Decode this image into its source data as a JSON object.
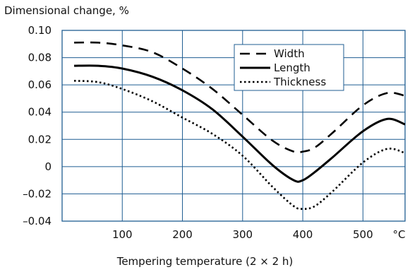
{
  "chart_data": {
    "type": "line",
    "ylabel": "Dimensional change, %",
    "xlabel": "Tempering temperature  (2 × 2 h)",
    "xlim": [
      0,
      570
    ],
    "ylim": [
      -0.04,
      0.1
    ],
    "grid": true,
    "legend_position": "top-right",
    "x_ticks": [
      {
        "value": 100,
        "label": "100"
      },
      {
        "value": 200,
        "label": "200"
      },
      {
        "value": 300,
        "label": "300"
      },
      {
        "value": 400,
        "label": "400"
      },
      {
        "value": 500,
        "label": "500"
      },
      {
        "value": 560,
        "label": "°C"
      }
    ],
    "y_ticks": [
      {
        "value": 0.1,
        "label": "0.10"
      },
      {
        "value": 0.08,
        "label": "0.08"
      },
      {
        "value": 0.06,
        "label": "0.06"
      },
      {
        "value": 0.04,
        "label": "0.04"
      },
      {
        "value": 0.02,
        "label": "0.02"
      },
      {
        "value": 0.0,
        "label": "0"
      },
      {
        "value": -0.02,
        "label": "–0.02"
      },
      {
        "value": -0.04,
        "label": "–0.04"
      }
    ],
    "series": [
      {
        "name": "Width",
        "style": "dashed",
        "color": "#000000",
        "x": [
          20,
          60,
          100,
          150,
          200,
          250,
          300,
          350,
          385,
          400,
          420,
          450,
          500,
          540,
          570
        ],
        "y": [
          0.091,
          0.091,
          0.089,
          0.084,
          0.072,
          0.057,
          0.038,
          0.019,
          0.011,
          0.011,
          0.014,
          0.025,
          0.045,
          0.054,
          0.052
        ]
      },
      {
        "name": "Length",
        "style": "solid",
        "color": "#000000",
        "x": [
          20,
          60,
          100,
          150,
          200,
          250,
          300,
          350,
          385,
          400,
          420,
          450,
          500,
          540,
          570
        ],
        "y": [
          0.074,
          0.074,
          0.072,
          0.066,
          0.056,
          0.042,
          0.022,
          0.001,
          -0.01,
          -0.01,
          -0.004,
          0.007,
          0.026,
          0.035,
          0.031
        ]
      },
      {
        "name": "Thickness",
        "style": "dotted",
        "color": "#000000",
        "x": [
          20,
          60,
          100,
          150,
          200,
          250,
          300,
          350,
          385,
          400,
          420,
          450,
          500,
          540,
          570
        ],
        "y": [
          0.063,
          0.062,
          0.057,
          0.048,
          0.036,
          0.024,
          0.008,
          -0.015,
          -0.029,
          -0.031,
          -0.029,
          -0.018,
          0.003,
          0.013,
          0.01
        ]
      }
    ]
  }
}
